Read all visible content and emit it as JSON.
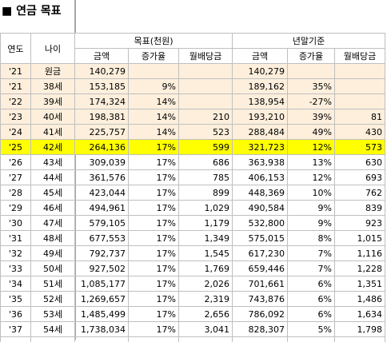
{
  "title": "■ 연금 목표",
  "headers": {
    "year": "연도",
    "age": "나이",
    "group_target": "목표(천원)",
    "group_yearend": "년말기준",
    "amount": "금액",
    "growth": "증가율",
    "dividend": "월배당금"
  },
  "rows": [
    {
      "year": "'21",
      "age": "원금",
      "t_amount": "140,279",
      "t_growth": "",
      "t_div": "",
      "e_amount": "140,279",
      "e_growth": "",
      "e_div": "",
      "style": "past"
    },
    {
      "year": "'21",
      "age": "38세",
      "t_amount": "153,185",
      "t_growth": "9%",
      "t_div": "",
      "e_amount": "189,162",
      "e_growth": "35%",
      "e_div": "",
      "style": "past"
    },
    {
      "year": "'22",
      "age": "39세",
      "t_amount": "174,324",
      "t_growth": "14%",
      "t_div": "",
      "e_amount": "138,954",
      "e_growth": "-27%",
      "e_div": "",
      "style": "past"
    },
    {
      "year": "'23",
      "age": "40세",
      "t_amount": "198,381",
      "t_growth": "14%",
      "t_div": "210",
      "e_amount": "193,210",
      "e_growth": "39%",
      "e_div": "81",
      "style": "past"
    },
    {
      "year": "'24",
      "age": "41세",
      "t_amount": "225,757",
      "t_growth": "14%",
      "t_div": "523",
      "e_amount": "288,484",
      "e_growth": "49%",
      "e_div": "430",
      "style": "past"
    },
    {
      "year": "'25",
      "age": "42세",
      "t_amount": "264,136",
      "t_growth": "17%",
      "t_div": "599",
      "e_amount": "321,723",
      "e_growth": "12%",
      "e_div": "573",
      "style": "now"
    },
    {
      "year": "'26",
      "age": "43세",
      "t_amount": "309,039",
      "t_growth": "17%",
      "t_div": "686",
      "e_amount": "363,938",
      "e_growth": "13%",
      "e_div": "630",
      "style": ""
    },
    {
      "year": "'27",
      "age": "44세",
      "t_amount": "361,576",
      "t_growth": "17%",
      "t_div": "785",
      "e_amount": "406,153",
      "e_growth": "12%",
      "e_div": "693",
      "style": ""
    },
    {
      "year": "'28",
      "age": "45세",
      "t_amount": "423,044",
      "t_growth": "17%",
      "t_div": "899",
      "e_amount": "448,369",
      "e_growth": "10%",
      "e_div": "762",
      "style": ""
    },
    {
      "year": "'29",
      "age": "46세",
      "t_amount": "494,961",
      "t_growth": "17%",
      "t_div": "1,029",
      "e_amount": "490,584",
      "e_growth": "9%",
      "e_div": "839",
      "style": ""
    },
    {
      "year": "'30",
      "age": "47세",
      "t_amount": "579,105",
      "t_growth": "17%",
      "t_div": "1,179",
      "e_amount": "532,800",
      "e_growth": "9%",
      "e_div": "923",
      "style": ""
    },
    {
      "year": "'31",
      "age": "48세",
      "t_amount": "677,553",
      "t_growth": "17%",
      "t_div": "1,349",
      "e_amount": "575,015",
      "e_growth": "8%",
      "e_div": "1,015",
      "style": ""
    },
    {
      "year": "'32",
      "age": "49세",
      "t_amount": "792,737",
      "t_growth": "17%",
      "t_div": "1,545",
      "e_amount": "617,230",
      "e_growth": "7%",
      "e_div": "1,116",
      "style": ""
    },
    {
      "year": "'33",
      "age": "50세",
      "t_amount": "927,502",
      "t_growth": "17%",
      "t_div": "1,769",
      "e_amount": "659,446",
      "e_growth": "7%",
      "e_div": "1,228",
      "style": ""
    },
    {
      "year": "'34",
      "age": "51세",
      "t_amount": "1,085,177",
      "t_growth": "17%",
      "t_div": "2,026",
      "e_amount": "701,661",
      "e_growth": "6%",
      "e_div": "1,351",
      "style": ""
    },
    {
      "year": "'35",
      "age": "52세",
      "t_amount": "1,269,657",
      "t_growth": "17%",
      "t_div": "2,319",
      "e_amount": "743,876",
      "e_growth": "6%",
      "e_div": "1,486",
      "style": ""
    },
    {
      "year": "'36",
      "age": "53세",
      "t_amount": "1,485,499",
      "t_growth": "17%",
      "t_div": "2,656",
      "e_amount": "786,092",
      "e_growth": "6%",
      "e_div": "1,634",
      "style": ""
    },
    {
      "year": "'37",
      "age": "54세",
      "t_amount": "1,738,034",
      "t_growth": "17%",
      "t_div": "3,041",
      "e_amount": "828,307",
      "e_growth": "5%",
      "e_div": "1,798",
      "style": ""
    }
  ],
  "colors": {
    "past_fill": "#fdefdc",
    "current_fill": "#ffff00",
    "grid": "#bfbfbf"
  }
}
